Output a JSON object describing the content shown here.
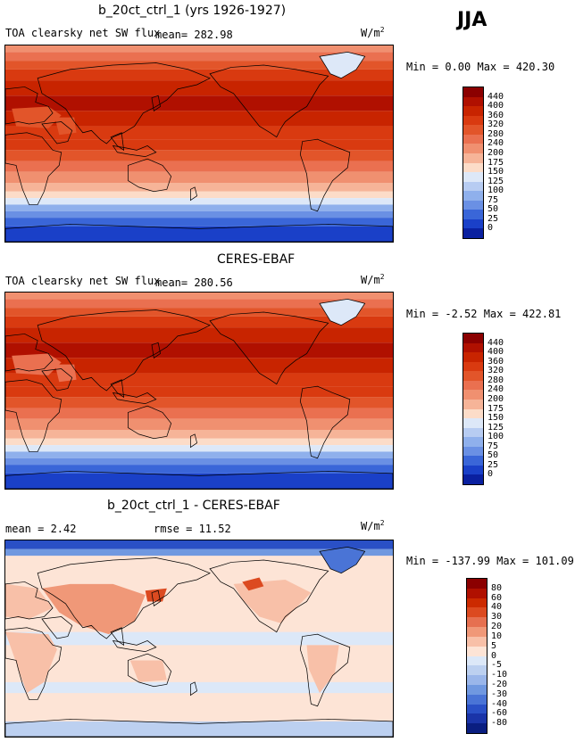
{
  "season": "JJA",
  "panels": [
    {
      "title": "b_20ct_ctrl_1 (yrs 1926-1927)",
      "variable": "TOA clearsky net SW flux",
      "mean_text": "mean= 282.98",
      "units": "W/m",
      "units_exp": "2",
      "minmax": "Min =    0.00 Max = 420.30",
      "colorbar_labels": [
        "440",
        "400",
        "360",
        "320",
        "280",
        "240",
        "200",
        "175",
        "150",
        "125",
        "100",
        "75",
        "50",
        "25",
        "0"
      ]
    },
    {
      "title": "CERES-EBAF",
      "variable": "TOA clearsky net SW flux",
      "mean_text": "mean= 280.56",
      "units": "W/m",
      "units_exp": "2",
      "minmax": "Min =  -2.52 Max = 422.81",
      "colorbar_labels": [
        "440",
        "400",
        "360",
        "320",
        "280",
        "240",
        "200",
        "175",
        "150",
        "125",
        "100",
        "75",
        "50",
        "25",
        "0"
      ]
    },
    {
      "title": "b_20ct_ctrl_1 - CERES-EBAF",
      "mean_text": "mean =    2.42",
      "rmse_text": "rmse =   11.52",
      "units": "W/m",
      "units_exp": "2",
      "minmax": "Min = -137.99 Max = 101.09",
      "colorbar_labels": [
        "80",
        "60",
        "40",
        "30",
        "20",
        "10",
        "5",
        "0",
        "-5",
        "-10",
        "-20",
        "-30",
        "-40",
        "-60",
        "-80"
      ]
    }
  ],
  "colors": {
    "abs_scale": [
      "#8b0000",
      "#b01000",
      "#c82400",
      "#d93a10",
      "#e2552a",
      "#ea7050",
      "#f09070",
      "#f6b498",
      "#fcdcc8",
      "#dde8f8",
      "#b7ccf2",
      "#8fb0ec",
      "#6a90e4",
      "#3a66d8",
      "#1a40c8",
      "#0a20a0"
    ],
    "diff_scale": [
      "#8b0000",
      "#b01000",
      "#cc2a00",
      "#dc4a20",
      "#e67050",
      "#f09878",
      "#f8c0a8",
      "#fde4d6",
      "#dce8f8",
      "#bcd0f0",
      "#9ab6ea",
      "#7098e0",
      "#4a74d6",
      "#2a50c6",
      "#1a34a8",
      "#0a1e80"
    ],
    "coast": "#000000"
  }
}
